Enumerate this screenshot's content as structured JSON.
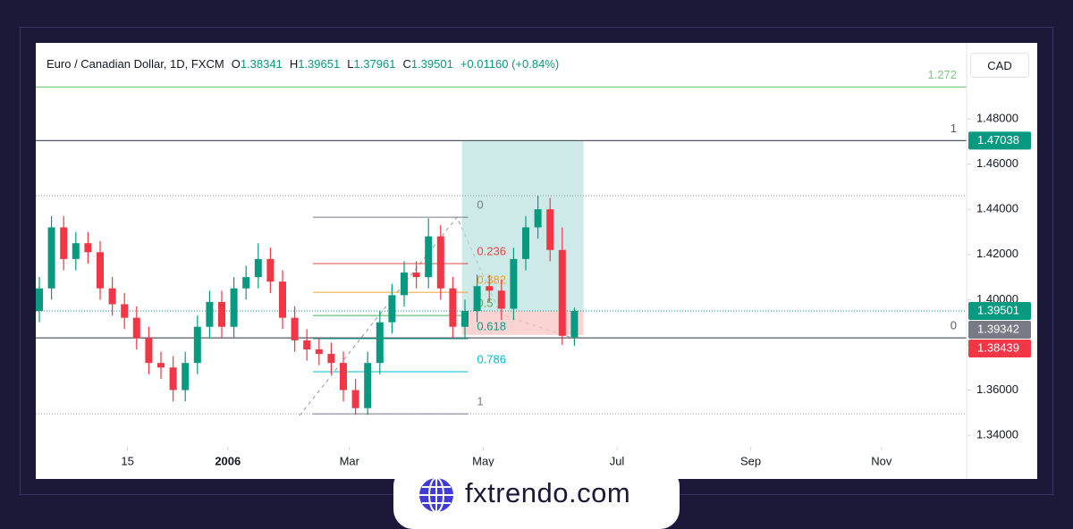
{
  "header": {
    "symbol": "Euro / Canadian Dollar, 1D, FXCM",
    "prefixes": [
      "O",
      "H",
      "L",
      "C"
    ],
    "change": "+0.01160 (+0.84%)"
  },
  "currency_button": "CAD",
  "brand": "fxtrendo.com",
  "chart_data": {
    "type": "candlestick",
    "x": [
      0,
      4,
      8,
      12,
      16,
      20,
      24,
      28,
      32,
      36,
      40,
      44,
      48,
      52,
      56,
      60,
      64,
      68,
      72,
      76,
      80,
      84,
      88,
      92,
      96,
      100,
      104,
      108,
      112,
      116,
      120,
      124,
      128,
      132,
      136,
      140,
      144,
      148,
      152,
      156,
      160,
      164,
      168,
      172,
      176
    ],
    "open": [
      1.395,
      1.405,
      1.432,
      1.418,
      1.425,
      1.421,
      1.405,
      1.398,
      1.392,
      1.383,
      1.372,
      1.37,
      1.36,
      1.372,
      1.388,
      1.399,
      1.388,
      1.405,
      1.41,
      1.418,
      1.408,
      1.392,
      1.382,
      1.378,
      1.376,
      1.372,
      1.36,
      1.352,
      1.372,
      1.39,
      1.402,
      1.412,
      1.41,
      1.428,
      1.405,
      1.388,
      1.395,
      1.406,
      1.404,
      1.396,
      1.418,
      1.432,
      1.44,
      1.422,
      1.38341
    ],
    "high": [
      1.41,
      1.437,
      1.437,
      1.43,
      1.43,
      1.426,
      1.41,
      1.403,
      1.397,
      1.388,
      1.377,
      1.375,
      1.377,
      1.393,
      1.404,
      1.404,
      1.41,
      1.415,
      1.425,
      1.423,
      1.413,
      1.397,
      1.387,
      1.383,
      1.381,
      1.377,
      1.365,
      1.377,
      1.395,
      1.407,
      1.417,
      1.417,
      1.436,
      1.433,
      1.41,
      1.4,
      1.411,
      1.411,
      1.409,
      1.423,
      1.437,
      1.446,
      1.445,
      1.432,
      1.39651
    ],
    "low": [
      1.39,
      1.4,
      1.413,
      1.413,
      1.416,
      1.4,
      1.393,
      1.387,
      1.378,
      1.367,
      1.365,
      1.355,
      1.355,
      1.367,
      1.383,
      1.383,
      1.383,
      1.4,
      1.405,
      1.403,
      1.387,
      1.377,
      1.373,
      1.371,
      1.367,
      1.355,
      1.349,
      1.349,
      1.367,
      1.385,
      1.397,
      1.405,
      1.405,
      1.4,
      1.383,
      1.383,
      1.39,
      1.399,
      1.391,
      1.391,
      1.413,
      1.427,
      1.417,
      1.38,
      1.37961
    ],
    "close": [
      1.405,
      1.432,
      1.418,
      1.425,
      1.421,
      1.405,
      1.398,
      1.392,
      1.383,
      1.372,
      1.37,
      1.36,
      1.372,
      1.388,
      1.399,
      1.388,
      1.405,
      1.41,
      1.418,
      1.408,
      1.392,
      1.382,
      1.378,
      1.376,
      1.372,
      1.36,
      1.352,
      1.372,
      1.39,
      1.402,
      1.412,
      1.41,
      1.428,
      1.405,
      1.388,
      1.395,
      1.406,
      1.404,
      1.396,
      1.418,
      1.432,
      1.44,
      1.422,
      1.384,
      1.39501
    ],
    "up_color": "#089981",
    "down_color": "#f23645",
    "xlim": [
      0,
      305
    ],
    "xticks": [
      {
        "value": 29,
        "label": "15"
      },
      {
        "value": 62,
        "label": "2006"
      },
      {
        "value": 102,
        "label": "Mar"
      },
      {
        "value": 146,
        "label": "May"
      },
      {
        "value": 190,
        "label": "Jul"
      },
      {
        "value": 234,
        "label": "Sep"
      },
      {
        "value": 277,
        "label": "Nov"
      }
    ],
    "ylim": [
      1.3349,
      1.5089
    ],
    "yticks": [
      {
        "value": 1.34,
        "label": "1.34000"
      },
      {
        "value": 1.36,
        "label": "1.36000"
      },
      {
        "value": 1.38,
        "label": "1.38000"
      },
      {
        "value": 1.4,
        "label": "1.40000"
      },
      {
        "value": 1.42,
        "label": "1.42000"
      },
      {
        "value": 1.44,
        "label": "1.44000"
      },
      {
        "value": 1.46,
        "label": "1.46000"
      },
      {
        "value": 1.48,
        "label": "1.48000"
      }
    ],
    "fib": {
      "high": 1.4365,
      "low": 1.3495,
      "start": 90,
      "end": 141,
      "levels": [
        {
          "level": 0,
          "color": "#787b86"
        },
        {
          "level": 0.236,
          "color": "#e04848"
        },
        {
          "level": 0.382,
          "color": "#f0a030"
        },
        {
          "level": 0.5,
          "color": "#4caf50"
        },
        {
          "level": 0.618,
          "color": "#089981"
        },
        {
          "level": 0.786,
          "color": "#00bcd4"
        },
        {
          "level": 1,
          "color": "#787b86"
        }
      ]
    },
    "extension": {
      "base": 1.3831,
      "top": 1.47038,
      "levels": [
        {
          "level": 0,
          "color": "#555a66"
        },
        {
          "level": 1,
          "color": "#555a66"
        },
        {
          "level": 1.272,
          "color": "#81c784"
        }
      ]
    },
    "position": {
      "start": 139,
      "end": 179,
      "entry": 1.39501,
      "target": 1.47038,
      "stop": 1.38439
    },
    "dotted_lines": [
      1.446,
      1.3495
    ],
    "price_labels": [
      {
        "value": 1.47038,
        "color": "#089981"
      },
      {
        "value": 1.39501,
        "color": "#089981"
      },
      {
        "value": 1.39342,
        "color": "#787b86"
      },
      {
        "value": 1.38439,
        "color": "#f23645"
      }
    ]
  }
}
